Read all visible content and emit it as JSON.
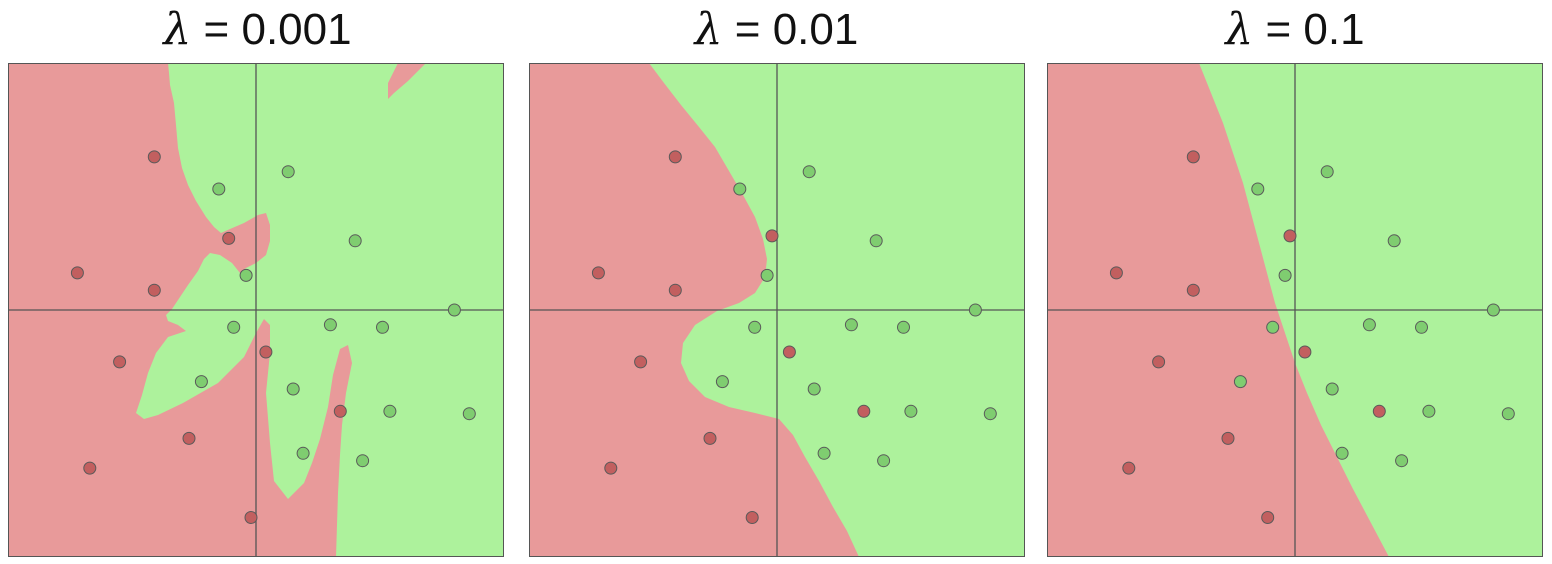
{
  "colors": {
    "class_red_region": "#e89a9a",
    "class_green_region": "#adf29c",
    "class_red_point": "#c25f5f",
    "class_green_point": "#7fcd70",
    "point_outline": "#5a5a5a",
    "axis_line": "#555555"
  },
  "chart_data": [
    {
      "type": "scatter",
      "title": "λ = 0.001",
      "title_symbol": "λ",
      "title_value": "= 0.001",
      "xlim": [
        -1,
        1
      ],
      "ylim": [
        -1,
        1
      ],
      "grid": false,
      "series": [
        {
          "class": "red",
          "x": [
            -0.41,
            -0.72,
            -0.41,
            -0.55,
            -0.27,
            -0.67,
            -0.11,
            0.04,
            0.34,
            -0.02
          ],
          "y": [
            0.62,
            0.15,
            0.08,
            -0.21,
            -0.52,
            -0.64,
            0.29,
            -0.17,
            -0.41,
            -0.84
          ]
        },
        {
          "class": "green",
          "x": [
            -0.15,
            0.13,
            0.4,
            -0.04,
            -0.09,
            0.3,
            0.51,
            0.8,
            -0.22,
            0.15,
            0.54,
            0.86,
            0.19,
            0.43
          ],
          "y": [
            0.49,
            0.56,
            0.28,
            0.14,
            -0.07,
            -0.06,
            -0.07,
            0.0,
            -0.29,
            -0.32,
            -0.41,
            -0.42,
            -0.58,
            -0.61
          ]
        }
      ]
    },
    {
      "type": "scatter",
      "title": "λ = 0.01",
      "title_symbol": "λ",
      "title_value": "= 0.01",
      "xlim": [
        -1,
        1
      ],
      "ylim": [
        -1,
        1
      ],
      "grid": false,
      "series": [
        {
          "class": "red",
          "x": [
            -0.41,
            -0.72,
            -0.41,
            -0.55,
            -0.27,
            -0.67,
            -0.02,
            0.05,
            0.35,
            -0.1
          ],
          "y": [
            0.62,
            0.15,
            0.08,
            -0.21,
            -0.52,
            -0.64,
            0.3,
            -0.17,
            -0.41,
            -0.84
          ]
        },
        {
          "class": "green",
          "x": [
            -0.15,
            0.13,
            0.4,
            -0.04,
            -0.09,
            0.3,
            0.51,
            0.8,
            -0.22,
            0.15,
            0.54,
            0.86,
            0.19,
            0.43
          ],
          "y": [
            0.49,
            0.56,
            0.28,
            0.14,
            -0.07,
            -0.06,
            -0.07,
            0.0,
            -0.29,
            -0.32,
            -0.41,
            -0.42,
            -0.58,
            -0.61
          ]
        }
      ]
    },
    {
      "type": "scatter",
      "title": "λ = 0.1",
      "title_symbol": "λ",
      "title_value": "= 0.1",
      "xlim": [
        -1,
        1
      ],
      "ylim": [
        -1,
        1
      ],
      "grid": false,
      "series": [
        {
          "class": "red",
          "x": [
            -0.41,
            -0.72,
            -0.41,
            -0.55,
            -0.27,
            -0.67,
            -0.02,
            0.04,
            0.34,
            -0.11
          ],
          "y": [
            0.62,
            0.15,
            0.08,
            -0.21,
            -0.52,
            -0.64,
            0.3,
            -0.17,
            -0.41,
            -0.84
          ]
        },
        {
          "class": "green",
          "x": [
            -0.15,
            0.13,
            0.4,
            -0.04,
            -0.09,
            0.3,
            0.51,
            0.8,
            -0.22,
            0.15,
            0.54,
            0.86,
            0.19,
            0.43
          ],
          "y": [
            0.49,
            0.56,
            0.28,
            0.14,
            -0.07,
            -0.06,
            -0.07,
            0.0,
            -0.29,
            -0.32,
            -0.41,
            -0.42,
            -0.58,
            -0.61
          ]
        }
      ]
    }
  ]
}
